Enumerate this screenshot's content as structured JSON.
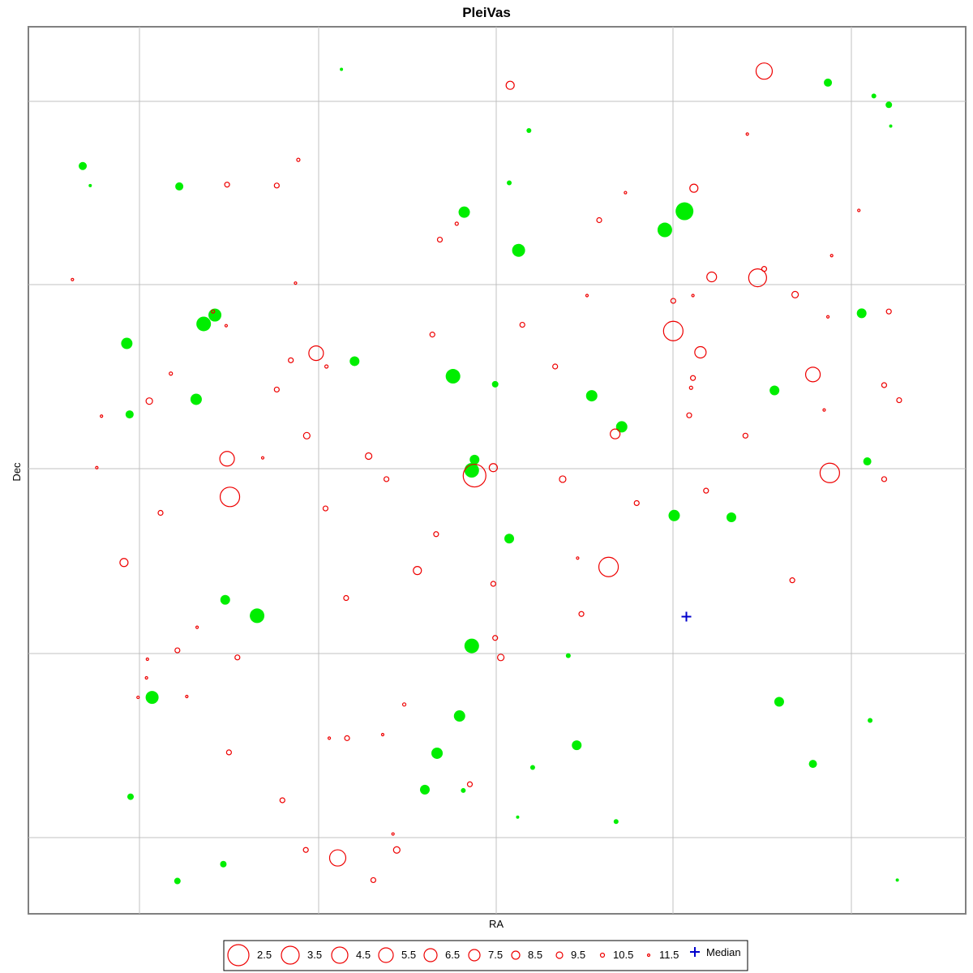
{
  "chart_data": {
    "type": "scatter",
    "title": "PleiVas",
    "xlabel": "RA",
    "ylabel": "Dec",
    "grid": true,
    "tick_labels_shown": false,
    "legend_position": "bottom-center",
    "median": {
      "label": "Median",
      "x": 0.702,
      "y": 0.335
    },
    "green_points": [
      {
        "x": 0.058,
        "y": 0.843,
        "r": 5
      },
      {
        "x": 0.066,
        "y": 0.821,
        "r": 2
      },
      {
        "x": 0.161,
        "y": 0.82,
        "r": 5
      },
      {
        "x": 0.334,
        "y": 0.952,
        "r": 2
      },
      {
        "x": 0.534,
        "y": 0.883,
        "r": 3
      },
      {
        "x": 0.853,
        "y": 0.937,
        "r": 5
      },
      {
        "x": 0.902,
        "y": 0.922,
        "r": 3
      },
      {
        "x": 0.918,
        "y": 0.912,
        "r": 4
      },
      {
        "x": 0.92,
        "y": 0.888,
        "r": 2
      },
      {
        "x": 0.465,
        "y": 0.791,
        "r": 7
      },
      {
        "x": 0.513,
        "y": 0.824,
        "r": 3
      },
      {
        "x": 0.523,
        "y": 0.748,
        "r": 8
      },
      {
        "x": 0.679,
        "y": 0.771,
        "r": 9
      },
      {
        "x": 0.7,
        "y": 0.792,
        "r": 11
      },
      {
        "x": 0.105,
        "y": 0.643,
        "r": 7
      },
      {
        "x": 0.187,
        "y": 0.665,
        "r": 9
      },
      {
        "x": 0.199,
        "y": 0.675,
        "r": 8
      },
      {
        "x": 0.348,
        "y": 0.623,
        "r": 6
      },
      {
        "x": 0.453,
        "y": 0.606,
        "r": 9
      },
      {
        "x": 0.498,
        "y": 0.597,
        "r": 4
      },
      {
        "x": 0.179,
        "y": 0.58,
        "r": 7
      },
      {
        "x": 0.108,
        "y": 0.563,
        "r": 5
      },
      {
        "x": 0.601,
        "y": 0.584,
        "r": 7
      },
      {
        "x": 0.633,
        "y": 0.549,
        "r": 7
      },
      {
        "x": 0.796,
        "y": 0.59,
        "r": 6
      },
      {
        "x": 0.889,
        "y": 0.677,
        "r": 6
      },
      {
        "x": 0.476,
        "y": 0.512,
        "r": 6
      },
      {
        "x": 0.473,
        "y": 0.5,
        "r": 9
      },
      {
        "x": 0.895,
        "y": 0.51,
        "r": 5
      },
      {
        "x": 0.513,
        "y": 0.423,
        "r": 6
      },
      {
        "x": 0.689,
        "y": 0.449,
        "r": 7
      },
      {
        "x": 0.75,
        "y": 0.447,
        "r": 6
      },
      {
        "x": 0.21,
        "y": 0.354,
        "r": 6
      },
      {
        "x": 0.244,
        "y": 0.336,
        "r": 9
      },
      {
        "x": 0.473,
        "y": 0.302,
        "r": 9
      },
      {
        "x": 0.576,
        "y": 0.291,
        "r": 3
      },
      {
        "x": 0.132,
        "y": 0.244,
        "r": 8
      },
      {
        "x": 0.46,
        "y": 0.223,
        "r": 7
      },
      {
        "x": 0.801,
        "y": 0.239,
        "r": 6
      },
      {
        "x": 0.898,
        "y": 0.218,
        "r": 3
      },
      {
        "x": 0.436,
        "y": 0.181,
        "r": 7
      },
      {
        "x": 0.585,
        "y": 0.19,
        "r": 6
      },
      {
        "x": 0.837,
        "y": 0.169,
        "r": 5
      },
      {
        "x": 0.538,
        "y": 0.165,
        "r": 3
      },
      {
        "x": 0.423,
        "y": 0.14,
        "r": 6
      },
      {
        "x": 0.464,
        "y": 0.139,
        "r": 3
      },
      {
        "x": 0.109,
        "y": 0.132,
        "r": 4
      },
      {
        "x": 0.522,
        "y": 0.109,
        "r": 2
      },
      {
        "x": 0.627,
        "y": 0.104,
        "r": 3
      },
      {
        "x": 0.208,
        "y": 0.056,
        "r": 4
      },
      {
        "x": 0.159,
        "y": 0.037,
        "r": 4
      },
      {
        "x": 0.927,
        "y": 0.038,
        "r": 2
      }
    ],
    "red_circles": [
      {
        "x": 0.514,
        "y": 0.934,
        "r": 5
      },
      {
        "x": 0.785,
        "y": 0.95,
        "r": 10
      },
      {
        "x": 0.767,
        "y": 0.879,
        "r": 1.5
      },
      {
        "x": 0.288,
        "y": 0.85,
        "r": 2
      },
      {
        "x": 0.212,
        "y": 0.822,
        "r": 3
      },
      {
        "x": 0.265,
        "y": 0.821,
        "r": 3
      },
      {
        "x": 0.637,
        "y": 0.813,
        "r": 1.5
      },
      {
        "x": 0.71,
        "y": 0.818,
        "r": 5
      },
      {
        "x": 0.886,
        "y": 0.793,
        "r": 1.5
      },
      {
        "x": 0.609,
        "y": 0.782,
        "r": 3
      },
      {
        "x": 0.457,
        "y": 0.778,
        "r": 2
      },
      {
        "x": 0.439,
        "y": 0.76,
        "r": 3
      },
      {
        "x": 0.857,
        "y": 0.742,
        "r": 1.5
      },
      {
        "x": 0.047,
        "y": 0.715,
        "r": 1.5
      },
      {
        "x": 0.285,
        "y": 0.711,
        "r": 1.5
      },
      {
        "x": 0.729,
        "y": 0.718,
        "r": 6
      },
      {
        "x": 0.778,
        "y": 0.717,
        "r": 11
      },
      {
        "x": 0.785,
        "y": 0.727,
        "r": 3
      },
      {
        "x": 0.596,
        "y": 0.697,
        "r": 1.5
      },
      {
        "x": 0.688,
        "y": 0.691,
        "r": 3
      },
      {
        "x": 0.709,
        "y": 0.697,
        "r": 1.5
      },
      {
        "x": 0.818,
        "y": 0.698,
        "r": 4
      },
      {
        "x": 0.853,
        "y": 0.673,
        "r": 1.5
      },
      {
        "x": 0.918,
        "y": 0.679,
        "r": 3
      },
      {
        "x": 0.197,
        "y": 0.679,
        "r": 2
      },
      {
        "x": 0.211,
        "y": 0.663,
        "r": 1.5
      },
      {
        "x": 0.527,
        "y": 0.664,
        "r": 3
      },
      {
        "x": 0.431,
        "y": 0.653,
        "r": 3
      },
      {
        "x": 0.688,
        "y": 0.657,
        "r": 12
      },
      {
        "x": 0.717,
        "y": 0.633,
        "r": 7
      },
      {
        "x": 0.307,
        "y": 0.632,
        "r": 9
      },
      {
        "x": 0.28,
        "y": 0.624,
        "r": 3
      },
      {
        "x": 0.318,
        "y": 0.617,
        "r": 2
      },
      {
        "x": 0.562,
        "y": 0.617,
        "r": 3
      },
      {
        "x": 0.709,
        "y": 0.604,
        "r": 3
      },
      {
        "x": 0.837,
        "y": 0.608,
        "r": 9
      },
      {
        "x": 0.152,
        "y": 0.609,
        "r": 2
      },
      {
        "x": 0.265,
        "y": 0.591,
        "r": 3
      },
      {
        "x": 0.707,
        "y": 0.593,
        "r": 2
      },
      {
        "x": 0.913,
        "y": 0.596,
        "r": 3
      },
      {
        "x": 0.129,
        "y": 0.578,
        "r": 4
      },
      {
        "x": 0.078,
        "y": 0.561,
        "r": 1.5
      },
      {
        "x": 0.929,
        "y": 0.579,
        "r": 3
      },
      {
        "x": 0.849,
        "y": 0.568,
        "r": 1.5
      },
      {
        "x": 0.705,
        "y": 0.562,
        "r": 3
      },
      {
        "x": 0.626,
        "y": 0.541,
        "r": 6
      },
      {
        "x": 0.297,
        "y": 0.539,
        "r": 4
      },
      {
        "x": 0.765,
        "y": 0.539,
        "r": 3
      },
      {
        "x": 0.073,
        "y": 0.503,
        "r": 1.5
      },
      {
        "x": 0.212,
        "y": 0.513,
        "r": 9
      },
      {
        "x": 0.25,
        "y": 0.514,
        "r": 1.5
      },
      {
        "x": 0.363,
        "y": 0.516,
        "r": 4
      },
      {
        "x": 0.476,
        "y": 0.494,
        "r": 14
      },
      {
        "x": 0.496,
        "y": 0.503,
        "r": 5
      },
      {
        "x": 0.855,
        "y": 0.497,
        "r": 12
      },
      {
        "x": 0.382,
        "y": 0.49,
        "r": 3
      },
      {
        "x": 0.57,
        "y": 0.49,
        "r": 4
      },
      {
        "x": 0.723,
        "y": 0.477,
        "r": 3
      },
      {
        "x": 0.913,
        "y": 0.49,
        "r": 3
      },
      {
        "x": 0.141,
        "y": 0.452,
        "r": 3
      },
      {
        "x": 0.215,
        "y": 0.47,
        "r": 12
      },
      {
        "x": 0.317,
        "y": 0.457,
        "r": 3
      },
      {
        "x": 0.649,
        "y": 0.463,
        "r": 3
      },
      {
        "x": 0.435,
        "y": 0.428,
        "r": 3
      },
      {
        "x": 0.102,
        "y": 0.396,
        "r": 5
      },
      {
        "x": 0.586,
        "y": 0.401,
        "r": 1.5
      },
      {
        "x": 0.415,
        "y": 0.387,
        "r": 5
      },
      {
        "x": 0.619,
        "y": 0.391,
        "r": 12
      },
      {
        "x": 0.496,
        "y": 0.372,
        "r": 3
      },
      {
        "x": 0.815,
        "y": 0.376,
        "r": 3
      },
      {
        "x": 0.339,
        "y": 0.356,
        "r": 3
      },
      {
        "x": 0.59,
        "y": 0.338,
        "r": 3
      },
      {
        "x": 0.18,
        "y": 0.323,
        "r": 1.5
      },
      {
        "x": 0.498,
        "y": 0.311,
        "r": 3
      },
      {
        "x": 0.159,
        "y": 0.297,
        "r": 3
      },
      {
        "x": 0.127,
        "y": 0.287,
        "r": 1.5
      },
      {
        "x": 0.223,
        "y": 0.289,
        "r": 3
      },
      {
        "x": 0.504,
        "y": 0.289,
        "r": 4
      },
      {
        "x": 0.126,
        "y": 0.266,
        "r": 1.5
      },
      {
        "x": 0.117,
        "y": 0.244,
        "r": 1.5
      },
      {
        "x": 0.169,
        "y": 0.245,
        "r": 1.5
      },
      {
        "x": 0.401,
        "y": 0.236,
        "r": 2
      },
      {
        "x": 0.321,
        "y": 0.198,
        "r": 1.5
      },
      {
        "x": 0.34,
        "y": 0.198,
        "r": 3
      },
      {
        "x": 0.378,
        "y": 0.202,
        "r": 1.5
      },
      {
        "x": 0.214,
        "y": 0.182,
        "r": 3
      },
      {
        "x": 0.471,
        "y": 0.146,
        "r": 3
      },
      {
        "x": 0.271,
        "y": 0.128,
        "r": 3
      },
      {
        "x": 0.389,
        "y": 0.09,
        "r": 1.5
      },
      {
        "x": 0.296,
        "y": 0.072,
        "r": 3
      },
      {
        "x": 0.33,
        "y": 0.063,
        "r": 10
      },
      {
        "x": 0.393,
        "y": 0.072,
        "r": 4
      },
      {
        "x": 0.368,
        "y": 0.038,
        "r": 3
      }
    ],
    "legend": [
      {
        "label": "2.5",
        "r": 13
      },
      {
        "label": "3.5",
        "r": 11
      },
      {
        "label": "4.5",
        "r": 10
      },
      {
        "label": "5.5",
        "r": 9
      },
      {
        "label": "6.5",
        "r": 8
      },
      {
        "label": "7.5",
        "r": 7
      },
      {
        "label": "8.5",
        "r": 5
      },
      {
        "label": "9.5",
        "r": 4
      },
      {
        "label": "10.5",
        "r": 2.5
      },
      {
        "label": "11.5",
        "r": 1.5
      },
      {
        "label": "Median",
        "marker": "plus"
      }
    ],
    "colors": {
      "green": "#00ee00",
      "red": "#ee0000",
      "median": "#0000cc",
      "grid": "#c0c0c0",
      "frame": "#808080"
    }
  }
}
